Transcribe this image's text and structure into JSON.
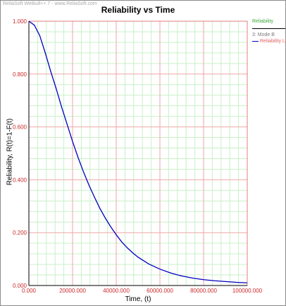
{
  "watermark": "ReliaSoft Weibull++ 7 - www.ReliaSoft.com",
  "chart_data": {
    "type": "line",
    "title": "Reliability vs Time",
    "xlabel": "Time, (t)",
    "ylabel": "Reliability, R(t)=1-F(t)",
    "xlim": [
      0,
      100000
    ],
    "ylim": [
      0,
      1
    ],
    "x_ticks": [
      "0.000",
      "20000.000",
      "40000.000",
      "60000.000",
      "80000.000",
      "100000.000"
    ],
    "y_ticks": [
      "0.000",
      "0.200",
      "0.400",
      "0.600",
      "0.800",
      "1.000"
    ],
    "grid": true,
    "legend_position": "right",
    "series": [
      {
        "name": "Reliability",
        "color": "#0000c0",
        "x": [
          0,
          2500,
          5000,
          7500,
          10000,
          12500,
          15000,
          17500,
          20000,
          22500,
          25000,
          27500,
          30000,
          32500,
          35000,
          37500,
          40000,
          42500,
          45000,
          47500,
          50000,
          55000,
          60000,
          65000,
          70000,
          75000,
          80000,
          85000,
          90000,
          95000,
          100000
        ],
        "y": [
          1.0,
          0.985,
          0.945,
          0.88,
          0.81,
          0.745,
          0.675,
          0.61,
          0.545,
          0.485,
          0.43,
          0.38,
          0.335,
          0.292,
          0.255,
          0.222,
          0.192,
          0.165,
          0.143,
          0.124,
          0.107,
          0.081,
          0.062,
          0.047,
          0.036,
          0.028,
          0.022,
          0.018,
          0.015,
          0.012,
          0.01
        ]
      }
    ]
  },
  "legend": {
    "title": "Reliability",
    "group": "3: Mode B",
    "series_label": "Reliability Line"
  }
}
